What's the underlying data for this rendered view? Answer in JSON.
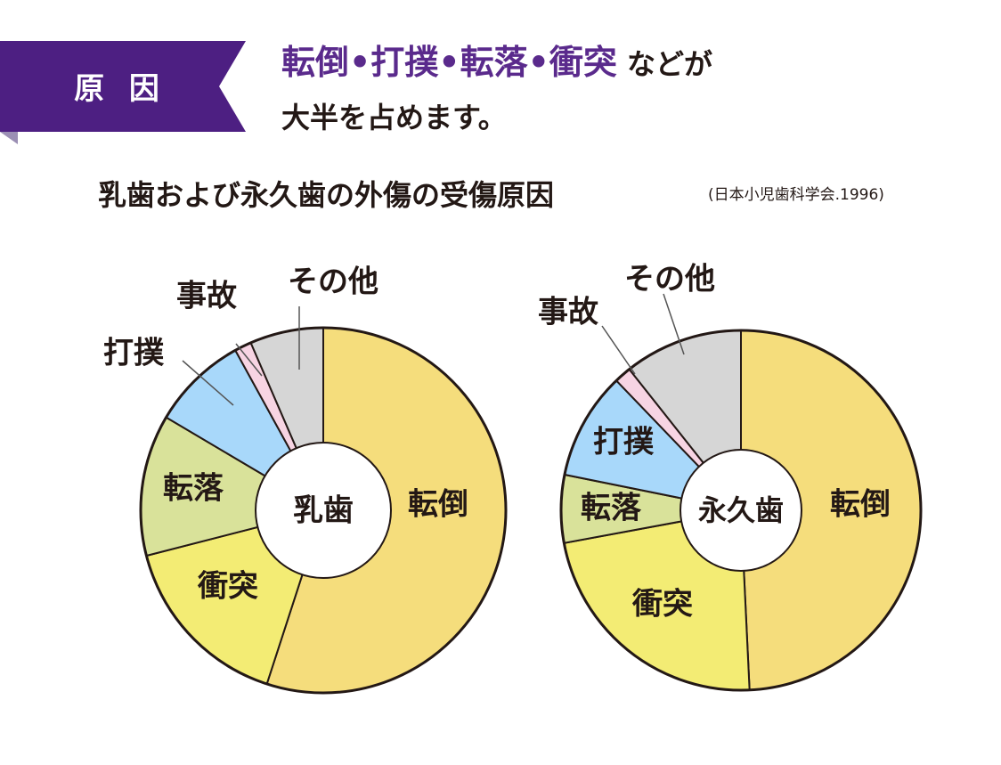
{
  "header": {
    "badge": "原 因",
    "headline_accent": "転倒•打撲•転落•衝突",
    "headline_tail": "などが",
    "headline_line2": "大半を占めます。"
  },
  "subtitle": "乳歯および永久歯の外傷の受傷原因",
  "source": "(日本小児歯科学会.1996)",
  "colors": {
    "brand": "#4d1f82",
    "brand_dark": "#9b8fb4",
    "転倒": "#f5dd7c",
    "衝突": "#f3ec74",
    "転落": "#d9e29a",
    "打撲": "#a8d8fa",
    "事故": "#f7d4e3",
    "その他": "#d6d6d6"
  },
  "chart_data": [
    {
      "type": "pie",
      "center_label": "乳歯",
      "categories": [
        "転倒",
        "衝突",
        "転落",
        "打撲",
        "事故",
        "その他"
      ],
      "values": [
        55.0,
        16.0,
        12.5,
        8.5,
        1.5,
        6.5
      ]
    },
    {
      "type": "pie",
      "center_label": "永久歯",
      "categories": [
        "転倒",
        "衝突",
        "転落",
        "打撲",
        "事故",
        "その他"
      ],
      "values": [
        48.5,
        22.5,
        6.0,
        9.5,
        1.5,
        10.5
      ]
    }
  ]
}
